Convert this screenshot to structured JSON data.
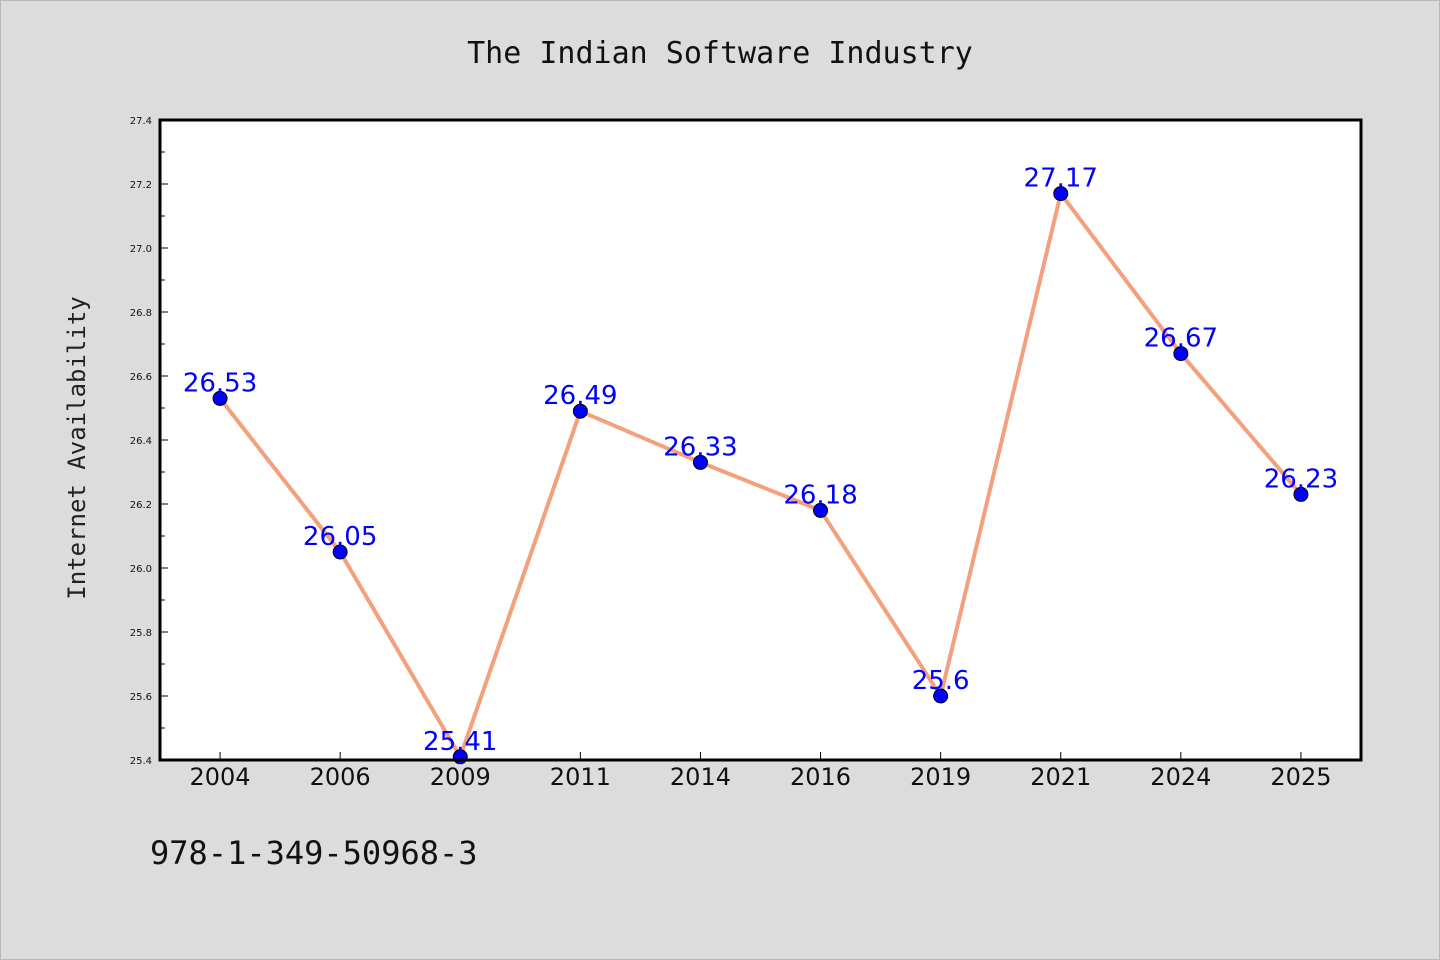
{
  "chart_data": {
    "type": "line",
    "title": "The Indian Software Industry",
    "xlabel": "",
    "ylabel": "Internet Availability",
    "categories": [
      "2004",
      "2006",
      "2009",
      "2011",
      "2014",
      "2016",
      "2019",
      "2021",
      "2024",
      "2025"
    ],
    "series": [
      {
        "values": [
          26.53,
          26.05,
          25.41,
          26.49,
          26.33,
          26.18,
          25.6,
          27.17,
          26.67,
          26.23
        ],
        "data_labels": [
          "26.53",
          "26.05",
          "25.41",
          "26.49",
          "26.33",
          "26.18",
          "25.6",
          "27.17",
          "26.67",
          "26.23"
        ],
        "line_color": "#f4a07c",
        "marker_color": "#0000ff"
      }
    ],
    "ylim": [
      25.4,
      27.4
    ],
    "yticks": [
      "25.4",
      "25.6",
      "25.8",
      "26.0",
      "26.2",
      "26.4",
      "26.6",
      "26.8",
      "27.0",
      "27.2",
      "27.4"
    ],
    "grid": false,
    "legend": "none"
  },
  "footer": {
    "isbn": "978-1-349-50968-3"
  },
  "colors": {
    "background": "#dcdcdc",
    "plot_area": "#ffffff",
    "line": "#f4a07c",
    "marker": "#0000ff",
    "data_label": "#0000ff"
  }
}
